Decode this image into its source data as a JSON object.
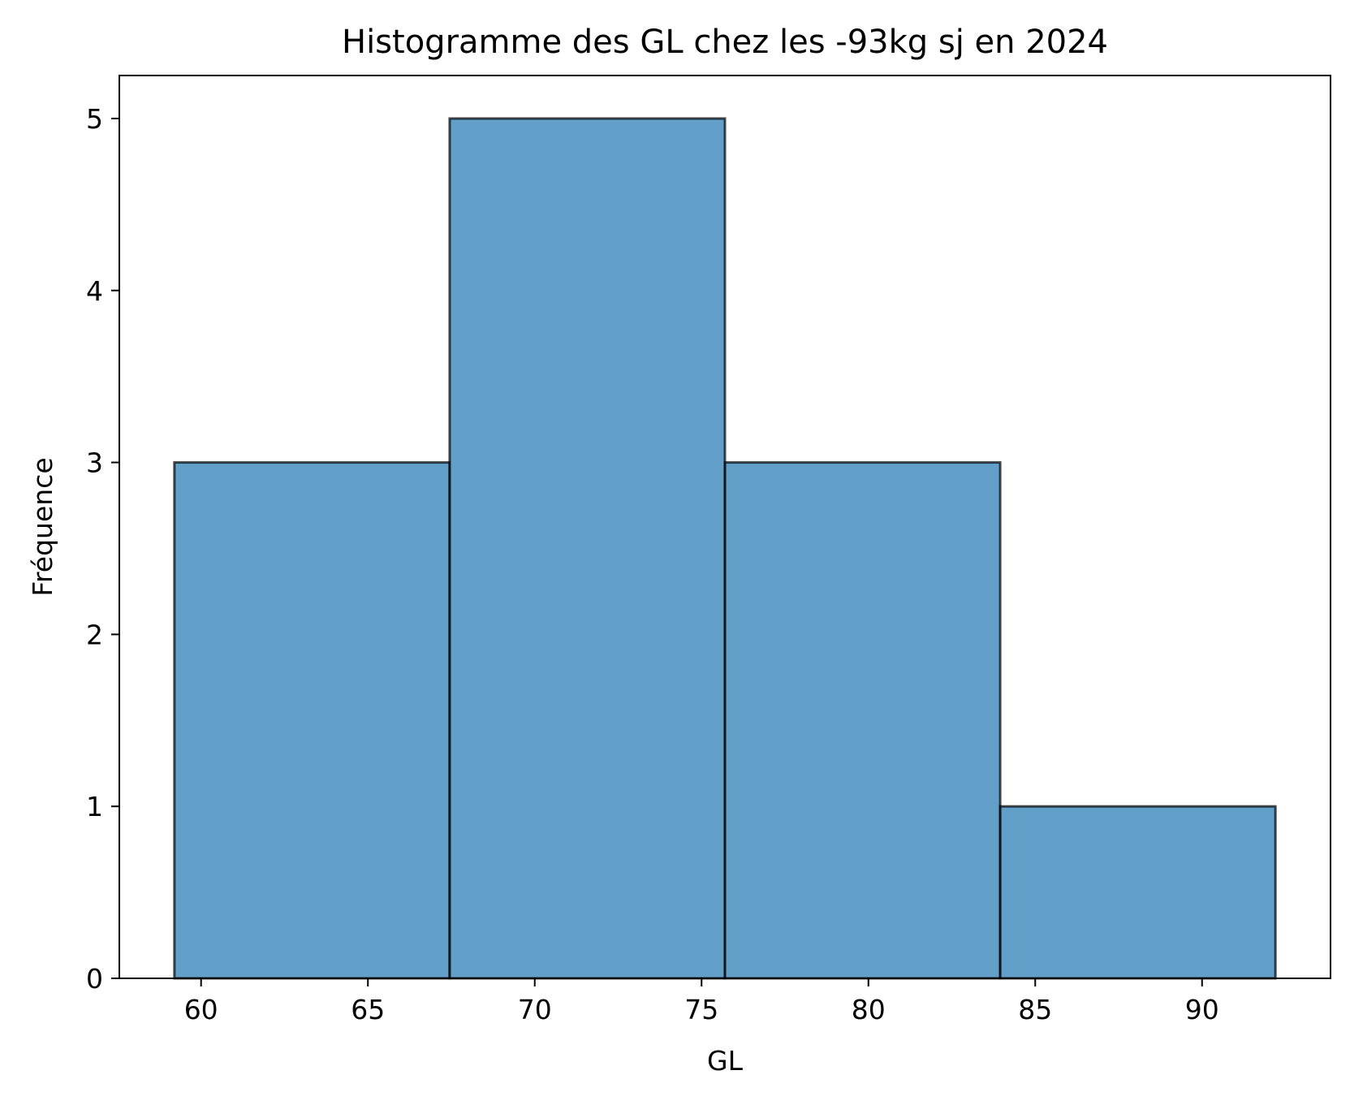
{
  "chart_data": {
    "type": "bar",
    "title": "Histogramme des GL chez les -93kg sj en 2024",
    "xlabel": "GL",
    "ylabel": "Fréquence",
    "bins": [
      {
        "start": 59.2,
        "end": 67.45,
        "count": 3
      },
      {
        "start": 67.45,
        "end": 75.7,
        "count": 5
      },
      {
        "start": 75.7,
        "end": 83.95,
        "count": 3
      },
      {
        "start": 83.95,
        "end": 92.2,
        "count": 1
      }
    ],
    "xlim": [
      57.55,
      93.85
    ],
    "ylim": [
      0,
      5.25
    ],
    "xticks": [
      60,
      65,
      70,
      75,
      80,
      85,
      90
    ],
    "yticks": [
      0,
      1,
      2,
      3,
      4,
      5
    ],
    "bar_color": "#1f77b4",
    "edge_color": "#000000",
    "grid": false,
    "legend": "none"
  }
}
